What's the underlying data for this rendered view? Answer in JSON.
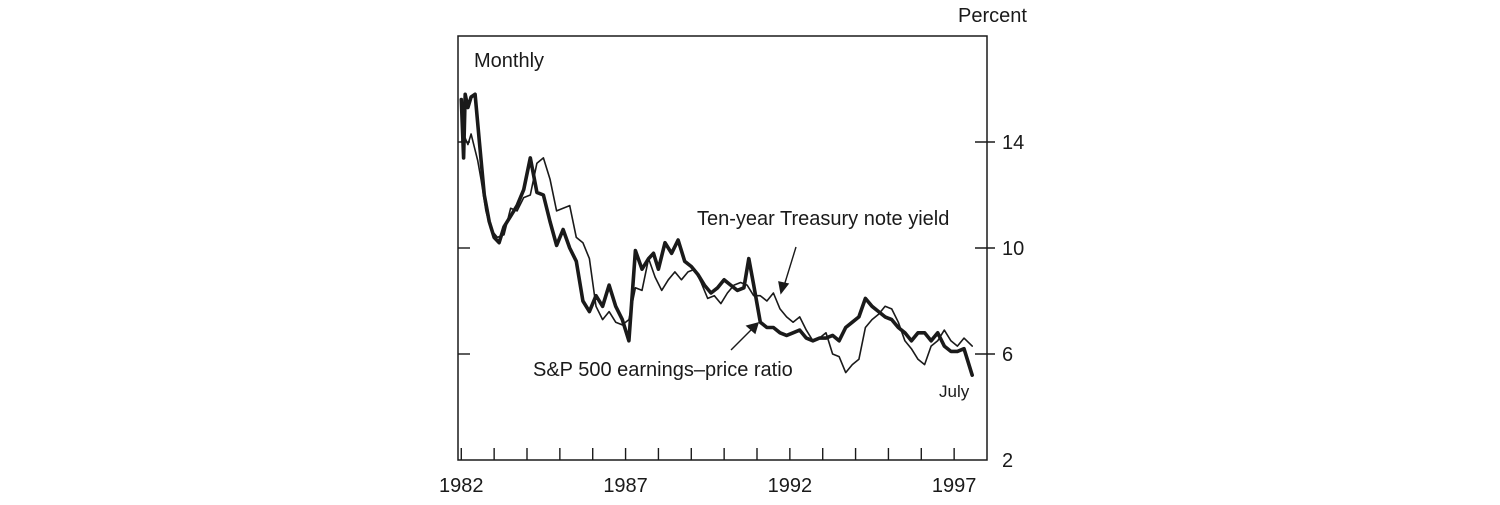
{
  "chart_data": {
    "type": "line",
    "frequency_label": "Monthly",
    "unit_label": "Percent",
    "end_label": "July",
    "ylim": [
      2,
      18
    ],
    "xlim": [
      1981.9,
      1998.0
    ],
    "y_ticks": [
      2,
      6,
      10,
      14
    ],
    "x_tick_labels": [
      "1982",
      "1987",
      "1992",
      "1997"
    ],
    "grid": false,
    "series": [
      {
        "name": "S&P 500 earnings–price ratio",
        "color": "#1a1a1a",
        "x": [
          1982.0,
          1982.07,
          1982.12,
          1982.2,
          1982.3,
          1982.42,
          1982.55,
          1982.7,
          1982.85,
          1983.0,
          1983.15,
          1983.3,
          1983.5,
          1983.7,
          1983.9,
          1984.1,
          1984.3,
          1984.5,
          1984.7,
          1984.9,
          1985.1,
          1985.3,
          1985.5,
          1985.7,
          1985.9,
          1986.1,
          1986.3,
          1986.5,
          1986.7,
          1986.9,
          1987.1,
          1987.3,
          1987.5,
          1987.7,
          1987.85,
          1988.0,
          1988.2,
          1988.4,
          1988.6,
          1988.8,
          1989.0,
          1989.2,
          1989.4,
          1989.6,
          1989.8,
          1990.0,
          1990.2,
          1990.4,
          1990.6,
          1990.75,
          1990.9,
          1991.1,
          1991.3,
          1991.5,
          1991.7,
          1991.9,
          1992.1,
          1992.3,
          1992.5,
          1992.7,
          1992.9,
          1993.1,
          1993.3,
          1993.5,
          1993.7,
          1993.9,
          1994.1,
          1994.3,
          1994.5,
          1994.7,
          1994.9,
          1995.1,
          1995.3,
          1995.5,
          1995.7,
          1995.9,
          1996.1,
          1996.3,
          1996.5,
          1996.7,
          1996.9,
          1997.1,
          1997.3,
          1997.55
        ],
        "y": [
          15.6,
          13.4,
          15.8,
          15.3,
          15.7,
          15.8,
          14.0,
          12.0,
          11.0,
          10.4,
          10.2,
          10.8,
          11.2,
          11.6,
          12.2,
          13.4,
          12.1,
          12.0,
          11.0,
          10.1,
          10.7,
          10.0,
          9.5,
          8.0,
          7.6,
          8.2,
          7.8,
          8.6,
          7.8,
          7.3,
          6.5,
          9.9,
          9.2,
          9.6,
          9.8,
          9.2,
          10.2,
          9.8,
          10.3,
          9.5,
          9.3,
          9.0,
          8.6,
          8.3,
          8.5,
          8.8,
          8.6,
          8.4,
          8.5,
          9.6,
          8.6,
          7.2,
          7.0,
          7.0,
          6.8,
          6.7,
          6.8,
          6.9,
          6.6,
          6.5,
          6.6,
          6.6,
          6.7,
          6.5,
          7.0,
          7.2,
          7.4,
          8.1,
          7.8,
          7.6,
          7.4,
          7.3,
          7.0,
          6.8,
          6.5,
          6.8,
          6.8,
          6.5,
          6.8,
          6.3,
          6.1,
          6.1,
          6.2,
          5.2
        ]
      },
      {
        "name": "Ten-year Treasury note yield",
        "color": "#1a1a1a",
        "x": [
          1982.0,
          1982.1,
          1982.2,
          1982.3,
          1982.4,
          1982.5,
          1982.6,
          1982.75,
          1982.9,
          1983.1,
          1983.3,
          1983.5,
          1983.7,
          1983.9,
          1984.1,
          1984.3,
          1984.5,
          1984.7,
          1984.9,
          1985.1,
          1985.3,
          1985.5,
          1985.7,
          1985.9,
          1986.1,
          1986.3,
          1986.5,
          1986.7,
          1986.9,
          1987.1,
          1987.3,
          1987.5,
          1987.7,
          1987.9,
          1988.1,
          1988.3,
          1988.5,
          1988.7,
          1988.9,
          1989.1,
          1989.3,
          1989.5,
          1989.7,
          1989.9,
          1990.1,
          1990.3,
          1990.5,
          1990.7,
          1990.9,
          1991.1,
          1991.3,
          1991.5,
          1991.7,
          1991.9,
          1992.1,
          1992.3,
          1992.5,
          1992.7,
          1992.9,
          1993.1,
          1993.3,
          1993.5,
          1993.7,
          1993.9,
          1994.1,
          1994.3,
          1994.5,
          1994.7,
          1994.9,
          1995.1,
          1995.3,
          1995.5,
          1995.7,
          1995.9,
          1996.1,
          1996.3,
          1996.5,
          1996.7,
          1996.9,
          1997.1,
          1997.3,
          1997.55
        ],
        "y": [
          14.0,
          14.2,
          13.9,
          14.3,
          13.8,
          13.3,
          12.6,
          11.4,
          10.7,
          10.4,
          10.5,
          11.5,
          11.4,
          11.9,
          12.0,
          13.2,
          13.4,
          12.6,
          11.4,
          11.5,
          11.6,
          10.4,
          10.2,
          9.6,
          7.8,
          7.3,
          7.6,
          7.2,
          7.1,
          7.3,
          8.5,
          8.4,
          9.6,
          8.9,
          8.4,
          8.8,
          9.1,
          8.8,
          9.1,
          9.2,
          8.7,
          8.1,
          8.2,
          7.9,
          8.3,
          8.6,
          8.7,
          8.6,
          8.2,
          8.2,
          8.0,
          8.3,
          7.7,
          7.4,
          7.2,
          7.4,
          6.9,
          6.5,
          6.6,
          6.8,
          6.0,
          5.9,
          5.3,
          5.6,
          5.8,
          7.0,
          7.3,
          7.5,
          7.8,
          7.7,
          7.2,
          6.5,
          6.2,
          5.8,
          5.6,
          6.3,
          6.5,
          6.9,
          6.5,
          6.3,
          6.6,
          6.3
        ]
      }
    ]
  }
}
